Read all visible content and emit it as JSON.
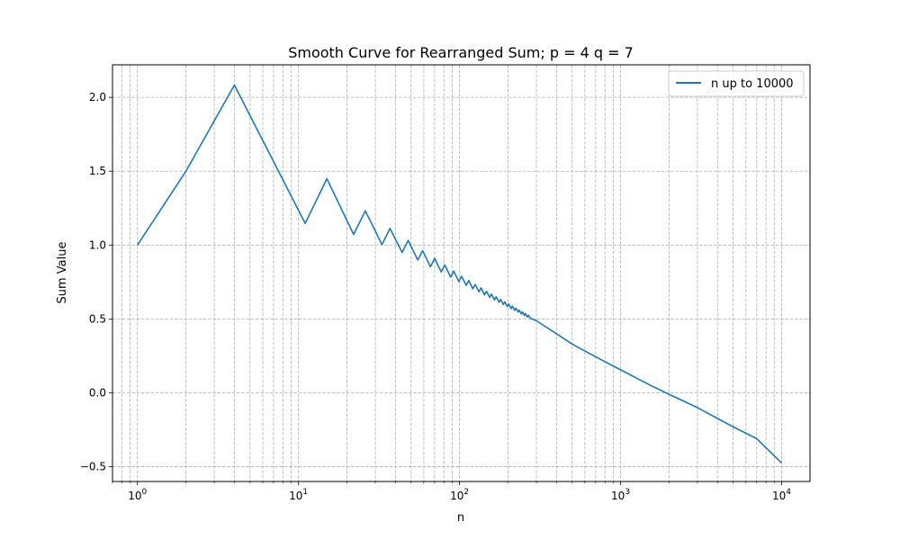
{
  "colors": {
    "series": "#1f77b4",
    "grid": "#b0b0b0",
    "axis": "#000000",
    "background": "#ffffff"
  },
  "chart_data": {
    "type": "line",
    "title": "Smooth Curve for Rearranged Sum; p = 4 q = 7",
    "xlabel": "n",
    "ylabel": "Sum Value",
    "x_scale": "log",
    "xlim": [
      0.7,
      15000
    ],
    "ylim": [
      -0.6,
      2.22
    ],
    "x_major_ticks": [
      {
        "value": 1,
        "base": "10",
        "exp": "0"
      },
      {
        "value": 10,
        "base": "10",
        "exp": "1"
      },
      {
        "value": 100,
        "base": "10",
        "exp": "2"
      },
      {
        "value": 1000,
        "base": "10",
        "exp": "3"
      },
      {
        "value": 10000,
        "base": "10",
        "exp": "4"
      }
    ],
    "y_ticks": [
      {
        "value": -0.5,
        "label": "−0.5"
      },
      {
        "value": 0.0,
        "label": "0.0"
      },
      {
        "value": 0.5,
        "label": "0.5"
      },
      {
        "value": 1.0,
        "label": "1.0"
      },
      {
        "value": 1.5,
        "label": "1.5"
      },
      {
        "value": 2.0,
        "label": "2.0"
      }
    ],
    "grid": true,
    "grid_style": "dashed",
    "legend": {
      "position": "top-right",
      "entries": [
        "n up to 10000"
      ]
    },
    "series": [
      {
        "name": "n up to 10000",
        "color": "#1f77b4",
        "x": [
          1,
          2,
          4,
          11,
          15,
          22,
          26,
          33,
          37,
          44,
          48,
          55,
          59,
          66,
          70,
          77,
          81,
          88,
          92,
          99,
          103,
          110,
          114,
          121,
          125,
          132,
          136,
          143,
          147,
          154,
          158,
          165,
          169,
          176,
          180,
          187,
          191,
          198,
          202,
          209,
          213,
          220,
          224,
          231,
          235,
          242,
          246,
          253,
          257,
          264,
          268,
          275,
          300,
          400,
          500,
          700,
          1000,
          1500,
          2000,
          3000,
          5000,
          7000,
          10000
        ],
        "y": [
          1.0,
          1.5,
          2.083,
          1.147,
          1.449,
          1.072,
          1.232,
          1.003,
          1.113,
          0.95,
          1.032,
          0.899,
          0.962,
          0.853,
          0.91,
          0.818,
          0.866,
          0.783,
          0.824,
          0.752,
          0.789,
          0.728,
          0.76,
          0.704,
          0.733,
          0.684,
          0.71,
          0.663,
          0.687,
          0.646,
          0.668,
          0.629,
          0.65,
          0.613,
          0.632,
          0.598,
          0.616,
          0.584,
          0.601,
          0.57,
          0.587,
          0.558,
          0.573,
          0.546,
          0.56,
          0.534,
          0.548,
          0.523,
          0.536,
          0.513,
          0.525,
          0.505,
          0.488,
          0.4,
          0.33,
          0.244,
          0.156,
          0.056,
          -0.01,
          -0.1,
          -0.23,
          -0.31,
          -0.475
        ]
      }
    ]
  }
}
